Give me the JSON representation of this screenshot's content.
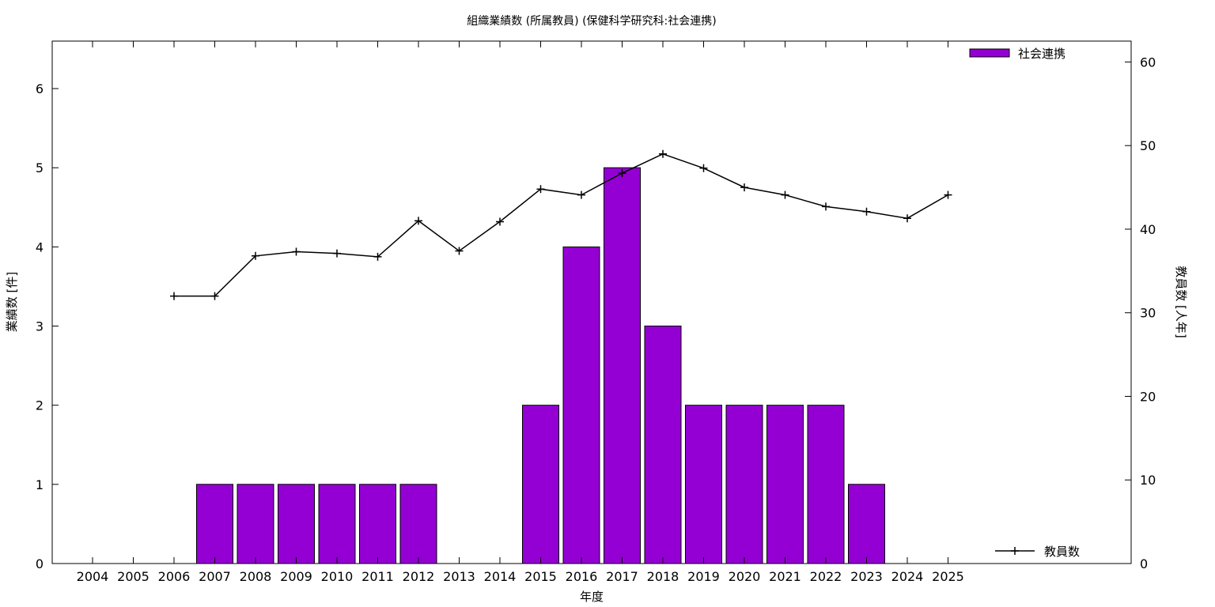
{
  "chart_data": {
    "type": "bar",
    "title": "組織業績数 (所属教員) (保健科学研究科:社会連携)",
    "xlabel": "年度",
    "ylabel": "業績数 [件]",
    "y2label": "教員数 [人年]",
    "categories": [
      "2004",
      "2005",
      "2006",
      "2007",
      "2008",
      "2009",
      "2010",
      "2011",
      "2012",
      "2013",
      "2014",
      "2015",
      "2016",
      "2017",
      "2018",
      "2019",
      "2020",
      "2021",
      "2022",
      "2023",
      "2024",
      "2025"
    ],
    "ylim": [
      0,
      6.6
    ],
    "y2lim": [
      0,
      62.5
    ],
    "yticks": [
      "0",
      "1",
      "2",
      "3",
      "4",
      "5",
      "6"
    ],
    "y2ticks": [
      "0",
      "10",
      "20",
      "30",
      "40",
      "50",
      "60"
    ],
    "grid": false,
    "colors": {
      "bar": "#9400d3",
      "line": "#000000"
    },
    "series": [
      {
        "name": "社会連携",
        "type": "bar",
        "axis": "left",
        "values": [
          0,
          0,
          0,
          1,
          1,
          1,
          1,
          1,
          1,
          0,
          0,
          2,
          4,
          5,
          3,
          2,
          2,
          2,
          2,
          1,
          0,
          0
        ],
        "legend_position": "top-right"
      },
      {
        "name": "教員数",
        "type": "line",
        "axis": "right",
        "marker": "plus",
        "values": [
          null,
          null,
          32.0,
          32.0,
          36.8,
          37.3,
          37.1,
          36.7,
          41.0,
          37.4,
          40.9,
          44.8,
          44.1,
          46.7,
          49.0,
          47.3,
          45.0,
          44.1,
          42.7,
          42.1,
          41.3,
          44.1
        ],
        "legend_position": "bottom-right"
      }
    ]
  }
}
